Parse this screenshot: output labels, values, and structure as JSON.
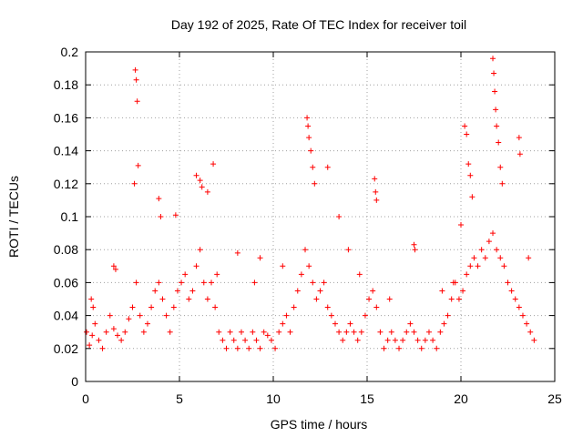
{
  "chart_data": {
    "type": "scatter",
    "title": "Day 192 of 2025, Rate Of TEC Index for receiver toil",
    "xlabel": "GPS time / hours",
    "ylabel": "ROTI / TECUs",
    "xlim": [
      0,
      25
    ],
    "ylim": [
      0,
      0.2
    ],
    "x_ticks": [
      "0",
      "5",
      "10",
      "15",
      "20",
      "25"
    ],
    "y_ticks": [
      "0",
      "0.02",
      "0.04",
      "0.06",
      "0.08",
      "0.1",
      "0.12",
      "0.14",
      "0.16",
      "0.18",
      "0.2"
    ],
    "grid": true,
    "marker": "plus",
    "color": "#ff0000",
    "series": [
      {
        "x": [
          0.05,
          0.2,
          0.35,
          0.5,
          0.7,
          0.9,
          1.1,
          1.3,
          1.5,
          1.7,
          1.9,
          2.1,
          2.3,
          2.5,
          2.7,
          2.9,
          3.1,
          3.3,
          3.5,
          3.7,
          3.9,
          4.1,
          4.3,
          4.5,
          4.7,
          4.9,
          5.1,
          5.3,
          5.5,
          5.7,
          5.9,
          6.1,
          6.3,
          6.5,
          6.7,
          6.9,
          7.1,
          7.3,
          7.5,
          7.7,
          7.9,
          8.1,
          8.3,
          8.5,
          8.7,
          8.9,
          9.1,
          9.3,
          9.5,
          9.7,
          9.9,
          10.1,
          10.3,
          10.5,
          10.7,
          10.9,
          11.1,
          11.3,
          11.5,
          11.7,
          11.9,
          12.1,
          12.3,
          12.5,
          12.7,
          12.9,
          13.1,
          13.3,
          13.5,
          13.7,
          13.9,
          14.1,
          14.3,
          14.5,
          14.7,
          14.9,
          15.1,
          15.3,
          15.5,
          15.7,
          15.9,
          16.1,
          16.3,
          16.5,
          16.7,
          16.9,
          17.1,
          17.3,
          17.5,
          17.7,
          17.9,
          18.1,
          18.3,
          18.5,
          18.7,
          18.9,
          19.1,
          19.3,
          19.5,
          19.7,
          19.9,
          20.1,
          20.3,
          20.5,
          20.7,
          20.9,
          21.1,
          21.3,
          21.5,
          21.7,
          21.9,
          22.1,
          22.3,
          22.5,
          22.7,
          22.9,
          23.1,
          23.3,
          23.5,
          23.7,
          23.9,
          2.65,
          2.7,
          2.75,
          2.8,
          2.6,
          3.9,
          4.0,
          4.8,
          5.9,
          6.1,
          6.2,
          6.5,
          6.8,
          11.8,
          11.85,
          11.9,
          12.0,
          12.1,
          12.9,
          12.2,
          15.4,
          15.45,
          15.5,
          20.2,
          20.3,
          20.4,
          20.5,
          20.6,
          21.7,
          21.75,
          21.8,
          21.85,
          21.9,
          22.0,
          22.1,
          22.2,
          23.1,
          23.15,
          17.5,
          17.55,
          13.5,
          14.0,
          9.3,
          8.1,
          0.3,
          0.4,
          1.5,
          1.6,
          7.0,
          9.0,
          10.5,
          14.6,
          16.2,
          19.0,
          19.6,
          20.0,
          23.6
        ],
        "y": [
          0.03,
          0.022,
          0.028,
          0.035,
          0.025,
          0.02,
          0.03,
          0.04,
          0.032,
          0.028,
          0.025,
          0.03,
          0.038,
          0.045,
          0.06,
          0.04,
          0.03,
          0.035,
          0.045,
          0.055,
          0.06,
          0.05,
          0.04,
          0.03,
          0.045,
          0.055,
          0.06,
          0.065,
          0.05,
          0.055,
          0.07,
          0.08,
          0.06,
          0.05,
          0.06,
          0.045,
          0.03,
          0.025,
          0.02,
          0.03,
          0.025,
          0.02,
          0.03,
          0.025,
          0.02,
          0.03,
          0.025,
          0.02,
          0.03,
          0.028,
          0.025,
          0.02,
          0.03,
          0.035,
          0.04,
          0.03,
          0.045,
          0.055,
          0.065,
          0.08,
          0.07,
          0.06,
          0.05,
          0.055,
          0.06,
          0.045,
          0.04,
          0.035,
          0.03,
          0.025,
          0.03,
          0.035,
          0.03,
          0.025,
          0.03,
          0.04,
          0.05,
          0.055,
          0.045,
          0.03,
          0.02,
          0.025,
          0.03,
          0.025,
          0.02,
          0.025,
          0.03,
          0.035,
          0.03,
          0.025,
          0.02,
          0.025,
          0.03,
          0.025,
          0.02,
          0.03,
          0.035,
          0.04,
          0.05,
          0.06,
          0.05,
          0.055,
          0.065,
          0.07,
          0.075,
          0.07,
          0.08,
          0.075,
          0.085,
          0.09,
          0.08,
          0.075,
          0.07,
          0.06,
          0.055,
          0.05,
          0.045,
          0.04,
          0.035,
          0.03,
          0.025,
          0.189,
          0.183,
          0.17,
          0.131,
          0.12,
          0.111,
          0.1,
          0.101,
          0.125,
          0.122,
          0.118,
          0.115,
          0.132,
          0.16,
          0.155,
          0.148,
          0.14,
          0.13,
          0.13,
          0.12,
          0.123,
          0.115,
          0.11,
          0.155,
          0.15,
          0.132,
          0.125,
          0.112,
          0.196,
          0.187,
          0.176,
          0.165,
          0.155,
          0.145,
          0.13,
          0.12,
          0.148,
          0.138,
          0.083,
          0.08,
          0.1,
          0.08,
          0.075,
          0.078,
          0.05,
          0.045,
          0.07,
          0.068,
          0.065,
          0.06,
          0.07,
          0.065,
          0.05,
          0.055,
          0.06,
          0.095,
          0.075
        ]
      }
    ]
  }
}
